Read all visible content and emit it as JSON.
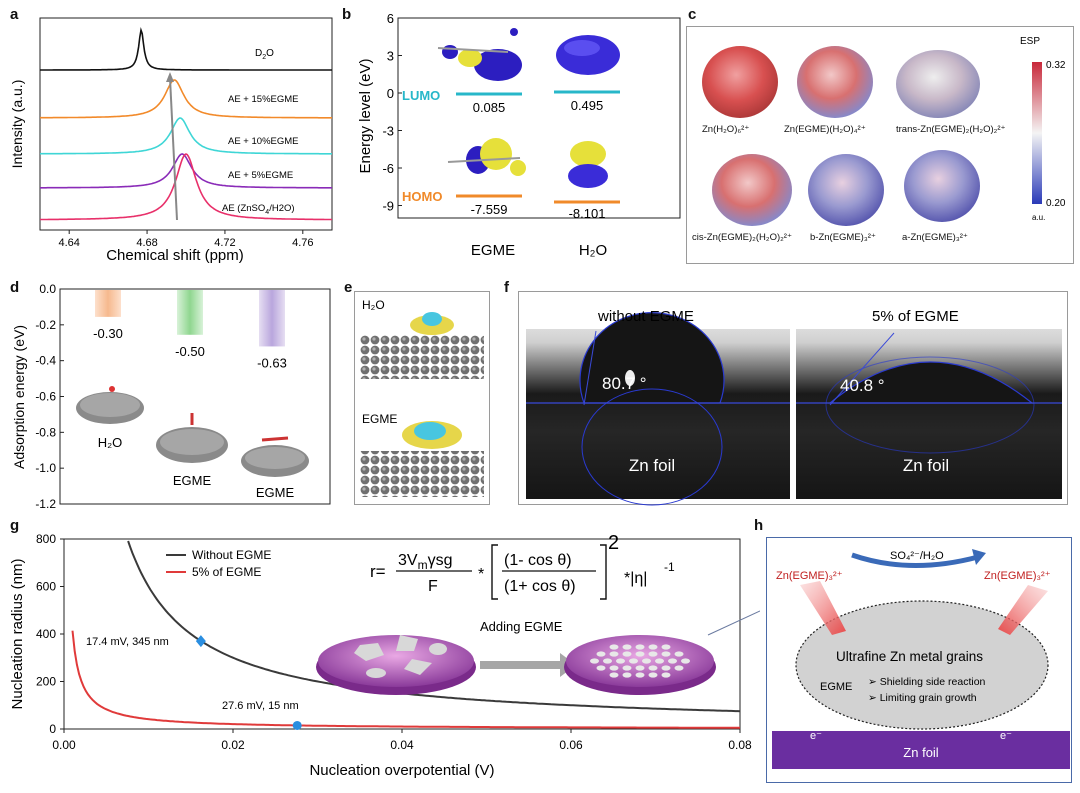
{
  "panels": {
    "a": {
      "label": "a",
      "xlabel": "Chemical shift (ppm)",
      "ylabel": "Intensity (a.u.)",
      "x_ticks": [
        "4.64",
        "4.68",
        "4.72",
        "4.76"
      ],
      "curves": [
        "D2O",
        "AE + 15%EGME",
        "AE + 10%EGME",
        "AE + 5%EGME",
        "AE (ZnSO4/H2O)"
      ],
      "curve_labels": [
        {
          "main": "D",
          "sub": "2",
          "tail": "O"
        },
        {
          "main": "AE + 15%EGME",
          "sub": "",
          "tail": ""
        },
        {
          "main": "AE + 10%EGME",
          "sub": "",
          "tail": ""
        },
        {
          "main": "AE + 5%EGME",
          "sub": "",
          "tail": ""
        },
        {
          "main": "AE (ZnSO",
          "sub": "4",
          "tail": "/H2O)"
        }
      ],
      "colors": [
        "#111111",
        "#f28a2a",
        "#3fd6d6",
        "#8a2bb8",
        "#e8306a"
      ],
      "peaks_ppm": [
        4.677,
        4.694,
        4.697,
        4.698,
        4.7
      ]
    },
    "b": {
      "label": "b",
      "ylabel": "Energy level (eV)",
      "y_ticks": [
        "6",
        "3",
        "0",
        "-3",
        "-6",
        "-9"
      ],
      "lumo_label": "LUMO",
      "homo_label": "HOMO",
      "lumo_values": [
        "0.085",
        "0.495"
      ],
      "homo_values": [
        "-7.559",
        "-8.101"
      ],
      "categories": [
        "EGME",
        "H₂O"
      ]
    },
    "c": {
      "label": "c",
      "esp_title": "ESP",
      "esp_max": "0.32",
      "esp_min": "0.20",
      "esp_unit": "a.u.",
      "species": [
        "Zn(H₂O)₆²⁺",
        "Zn(EGME)(H₂O)₄²⁺",
        "trans-Zn(EGME)₂(H₂O)₂²⁺",
        "cis-Zn(EGME)₂(H₂O)₂²⁺",
        "b-Zn(EGME)₃²⁺",
        "a-Zn(EGME)₃²⁺"
      ]
    },
    "d": {
      "label": "d",
      "ylabel": "Adsorption energy (eV)",
      "y_ticks": [
        "0.0",
        "-0.2",
        "-0.4",
        "-0.6",
        "-0.8",
        "-1.0",
        "-1.2"
      ],
      "values": [
        -0.3,
        -0.5,
        -0.63
      ],
      "value_labels": [
        "-0.30",
        "-0.50",
        "-0.63"
      ],
      "names": [
        "H₂O",
        "EGME",
        "EGME"
      ],
      "colors": [
        "#f6b98e",
        "#8fd68f",
        "#b9a6dd"
      ]
    },
    "e": {
      "label": "e",
      "top_label": "H₂O",
      "bottom_label": "EGME"
    },
    "f": {
      "label": "f",
      "left_title": "without EGME",
      "right_title": "5% of EGME",
      "left_angle": "80.7 °",
      "right_angle": "40.8 °",
      "substrate": "Zn foil"
    },
    "g": {
      "label": "g",
      "xlabel": "Nucleation overpotential (V)",
      "ylabel": "Nucleation radius (nm)",
      "x_ticks": [
        "0.00",
        "0.02",
        "0.04",
        "0.06",
        "0.08"
      ],
      "y_ticks": [
        "0",
        "200",
        "400",
        "600",
        "800"
      ],
      "legend": [
        "Without EGME",
        "5% of EGME"
      ],
      "colors": [
        "#3a3a3a",
        "#e03a3a"
      ],
      "annotation_1": "17.4 mV, 345 nm",
      "annotation_2": "27.6 mV, 15 nm",
      "arrow_label": "Adding EGME",
      "formula": {
        "lhs": "r=",
        "numerator": "3V",
        "numerator_sub": "m",
        "numerator_tail": "γsg",
        "denominator": "F",
        "star": "*",
        "inner_num": "(1- cos θ)",
        "inner_den": "(1+ cos θ)",
        "power": "2",
        "tail": "*|η|",
        "tail_power": "-1"
      }
    },
    "h": {
      "label": "h",
      "top_label": "SO₄²⁻/H₂O",
      "left_complex": "Zn(EGME)₃²⁺",
      "right_complex": "Zn(EGME)₃²⁺",
      "grain_title": "Ultrafine Zn metal grains",
      "bullets": [
        "Shielding side reaction",
        "Limiting grain growth"
      ],
      "egme": "EGME",
      "foil": "Zn foil",
      "electron": "e⁻"
    }
  }
}
